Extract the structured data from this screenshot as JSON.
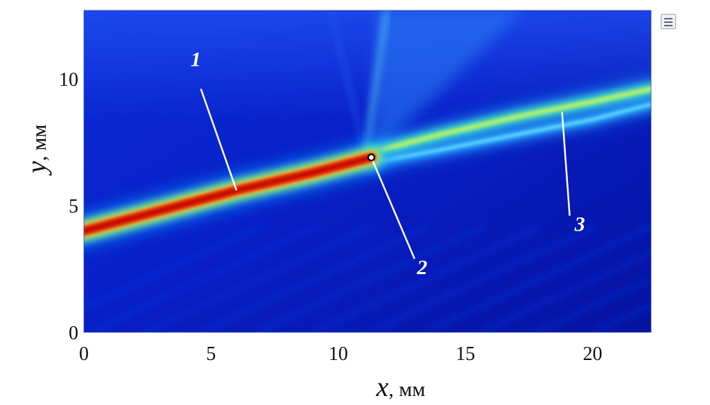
{
  "chart_data": {
    "type": "heatmap",
    "xlabel": "x, мм",
    "ylabel": "y, мм",
    "xlim": [
      0,
      22.3
    ],
    "ylim": [
      0,
      12.7
    ],
    "xticks": [
      0,
      5,
      10,
      15,
      20
    ],
    "yticks": [
      0,
      5,
      10
    ],
    "colormap": "jet",
    "features": [
      {
        "label": "1",
        "pointer_to": [
          6,
          5.6
        ]
      },
      {
        "label": "2",
        "pointer_to": [
          11.3,
          6.9
        ]
      },
      {
        "label": "3",
        "pointer_to": [
          18.8,
          8.7
        ]
      }
    ],
    "marker": {
      "x": 11.3,
      "y": 6.9
    },
    "main_beam": [
      [
        0,
        4.0
      ],
      [
        3,
        4.8
      ],
      [
        6,
        5.6
      ],
      [
        9,
        6.3
      ],
      [
        11.3,
        6.9
      ]
    ],
    "upper_beam": [
      [
        11.3,
        7.1
      ],
      [
        14,
        7.8
      ],
      [
        17,
        8.5
      ],
      [
        20,
        9.1
      ],
      [
        22.3,
        9.6
      ]
    ],
    "lower_beam": [
      [
        11.3,
        6.7
      ],
      [
        14,
        7.2
      ],
      [
        17,
        7.8
      ],
      [
        20,
        8.4
      ],
      [
        22.3,
        9.0
      ]
    ]
  },
  "colors": {
    "background_field": "#0a1fcf",
    "beam_peak": "#c40a00",
    "beam_secondary": "#5fd6a0",
    "callout": "#ffffff"
  },
  "ui": {
    "corner_icon": "reader-mode-icon"
  }
}
